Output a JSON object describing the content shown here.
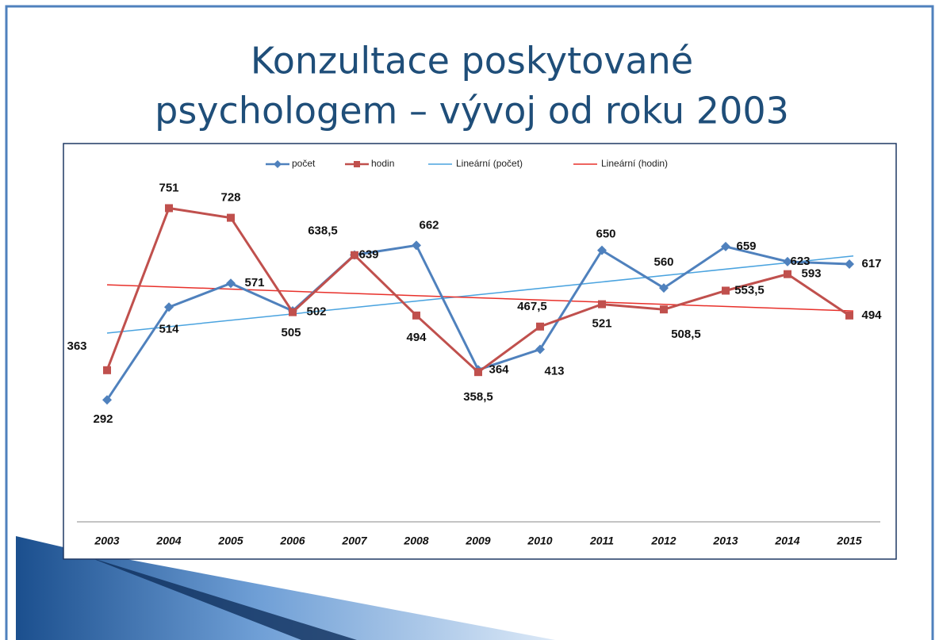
{
  "chart_data": {
    "type": "line",
    "title": "Konzultace poskytované",
    "subtitle": "psychologem – vývoj od roku 2003",
    "categories": [
      "2003",
      "2004",
      "2005",
      "2006",
      "2007",
      "2008",
      "2009",
      "2010",
      "2011",
      "2012",
      "2013",
      "2014",
      "2015"
    ],
    "series": [
      {
        "name": "počet",
        "color": "#4f81bd",
        "marker": "diamond",
        "values": [
          292,
          514,
          571,
          505,
          639,
          662,
          364,
          413,
          650,
          560,
          659,
          623,
          617
        ]
      },
      {
        "name": "hodin",
        "color": "#c0504d",
        "marker": "square",
        "values": [
          363,
          751,
          728,
          502,
          638.5,
          494,
          358.5,
          467.5,
          521,
          508.5,
          553.5,
          593,
          494
        ],
        "value_labels": [
          "363",
          "751",
          "728",
          "502",
          "638,5",
          "494",
          "358,5",
          "467,5",
          "521",
          "508,5",
          "553,5",
          "593",
          "494"
        ]
      }
    ],
    "trendlines": [
      {
        "name": "Lineární (počet)",
        "color": "#4aa3df",
        "of": 0
      },
      {
        "name": "Lineární (hodin)",
        "color": "#e8302a",
        "of": 1
      }
    ],
    "ylim": [
      0,
      900
    ],
    "legend": "top"
  }
}
